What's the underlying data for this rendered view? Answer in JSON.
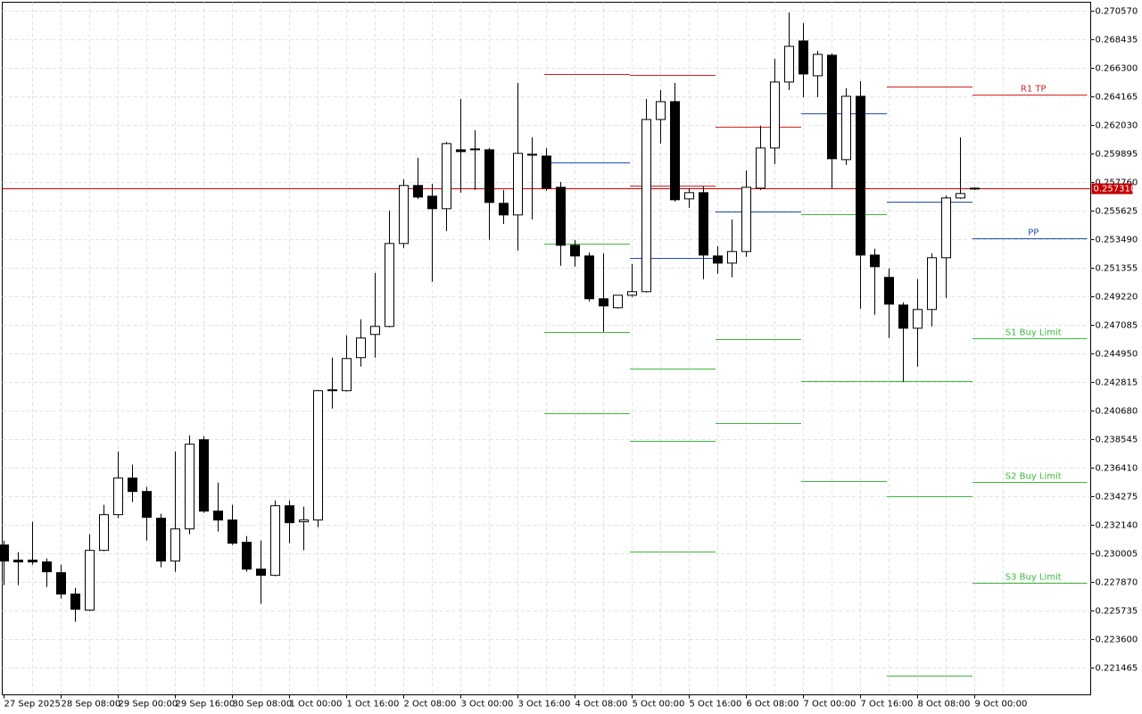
{
  "chart_data": {
    "type": "candlestick",
    "categories": [
      "27 Sep 2025",
      null,
      null,
      null,
      "28 Sep 08:00",
      null,
      null,
      null,
      "29 Sep 00:00",
      null,
      null,
      null,
      "29 Sep 16:00",
      null,
      null,
      null,
      "30 Sep 08:00",
      null,
      null,
      null,
      "1 Oct 00:00",
      null,
      null,
      null,
      "1 Oct 16:00",
      null,
      null,
      null,
      "2 Oct 08:00",
      null,
      null,
      null,
      "3 Oct 00:00",
      null,
      null,
      null,
      "3 Oct 16:00",
      null,
      null,
      null,
      "4 Oct 08:00",
      null,
      null,
      null,
      "5 Oct 00:00",
      null,
      null,
      null,
      "5 Oct 16:00",
      null,
      null,
      null,
      "6 Oct 08:00",
      null,
      null,
      null,
      "7 Oct 00:00",
      null,
      null,
      null,
      "7 Oct 16:00",
      null,
      null,
      null,
      "8 Oct 08:00",
      null,
      null,
      null,
      "9 Oct 00:00"
    ],
    "open": [
      0.230605,
      0.229471,
      0.229471,
      0.229337,
      0.228536,
      0.226935,
      0.225734,
      0.230204,
      0.232873,
      0.235609,
      0.234608,
      0.232606,
      0.229404,
      0.231806,
      0.238478,
      0.23314,
      0.232473,
      0.230805,
      0.228803,
      0.228336,
      0.23354,
      0.23234,
      0.232473,
      0.242147,
      0.242147,
      0.244616,
      0.246351,
      0.246951,
      0.253156,
      0.257493,
      0.256692,
      0.255758,
      0.260162,
      0.260228,
      0.260162,
      0.256159,
      0.255291,
      0.259828,
      0.259695,
      0.25736,
      0.253023,
      0.252222,
      0.24902,
      0.248352,
      0.249286,
      0.249553,
      0.26243,
      0.263765,
      0.256492,
      0.256959,
      0.252222,
      0.251688,
      0.252556,
      0.257293,
      0.260295,
      0.265232,
      0.268302,
      0.2657,
      0.267234,
      0.259428,
      0.264165,
      0.252289,
      0.250621,
      0.248552,
      0.246818,
      0.248219,
      0.252089,
      0.256559,
      0.257226
    ],
    "high": [
      0.230938,
      0.230071,
      0.23234,
      0.229604,
      0.229137,
      0.227402,
      0.231405,
      0.233607,
      0.23761,
      0.23661,
      0.234942,
      0.23294,
      0.23761,
      0.238811,
      0.238745,
      0.235275,
      0.233607,
      0.231272,
      0.230938,
      0.233941,
      0.233941,
      0.233474,
      0.242214,
      0.244616,
      0.246284,
      0.247485,
      0.250954,
      0.255625,
      0.25796,
      0.259561,
      0.257626,
      0.260762,
      0.263965,
      0.26163,
      0.260295,
      0.257159,
      0.265166,
      0.261096,
      0.260295,
      0.25776,
      0.253423,
      0.252489,
      0.252422,
      0.249286,
      0.251622,
      0.263965,
      0.264632,
      0.265166,
      0.257293,
      0.257426,
      0.252956,
      0.254958,
      0.258627,
      0.261963,
      0.266967,
      0.270437,
      0.269636,
      0.267568,
      0.267368,
      0.264765,
      0.265299,
      0.252756,
      0.251288,
      0.248753,
      0.250487,
      0.252422,
      0.256759,
      0.261096,
      0.25736
    ],
    "low": [
      0.227602,
      0.227602,
      0.229137,
      0.227469,
      0.226602,
      0.224867,
      0.225668,
      0.230138,
      0.232606,
      0.233807,
      0.230938,
      0.228937,
      0.228603,
      0.231405,
      0.233007,
      0.231606,
      0.230605,
      0.228603,
      0.226201,
      0.22827,
      0.230738,
      0.230204,
      0.231939,
      0.240813,
      0.242081,
      0.243949,
      0.244616,
      0.246884,
      0.252823,
      0.256492,
      0.250287,
      0.25409,
      0.256959,
      0.257159,
      0.253423,
      0.254624,
      0.252622,
      0.254958,
      0.257093,
      0.251488,
      0.251421,
      0.248819,
      0.246551,
      0.248286,
      0.249153,
      0.249487,
      0.260629,
      0.256292,
      0.255825,
      0.250487,
      0.250888,
      0.250621,
      0.252155,
      0.257159,
      0.259094,
      0.264632,
      0.264098,
      0.264098,
      0.257293,
      0.259028,
      0.248286,
      0.247819,
      0.246084,
      0.242815,
      0.243949,
      0.246951,
      0.249086,
      0.256492,
      0.257159
    ],
    "close": [
      0.229404,
      0.229337,
      0.229337,
      0.228603,
      0.226935,
      0.225801,
      0.230204,
      0.232873,
      0.235609,
      0.234608,
      0.232673,
      0.229404,
      0.231806,
      0.238144,
      0.23314,
      0.232473,
      0.230738,
      0.228803,
      0.228336,
      0.23354,
      0.232273,
      0.232473,
      0.242147,
      0.242214,
      0.244549,
      0.246084,
      0.246951,
      0.253156,
      0.257493,
      0.256626,
      0.255758,
      0.260629,
      0.260028,
      0.260162,
      0.256225,
      0.255291,
      0.259895,
      0.259761,
      0.257293,
      0.253023,
      0.252222,
      0.24902,
      0.248486,
      0.249286,
      0.249553,
      0.26243,
      0.263765,
      0.256425,
      0.256959,
      0.252289,
      0.251688,
      0.252556,
      0.25736,
      0.260295,
      0.265232,
      0.267901,
      0.265833,
      0.267301,
      0.259495,
      0.264165,
      0.252289,
      0.251421,
      0.248619,
      0.246818,
      0.248219,
      0.252089,
      0.256559,
      0.256892,
      0.257293
    ],
    "ylim": [
      0.2194,
      0.2712
    ],
    "yticks": [
      {
        "value": 0.27057,
        "label": "0.270570"
      },
      {
        "value": 0.268435,
        "label": "0.268435"
      },
      {
        "value": 0.2663,
        "label": "0.266300"
      },
      {
        "value": 0.264165,
        "label": "0.264165"
      },
      {
        "value": 0.26203,
        "label": "0.262030"
      },
      {
        "value": 0.259895,
        "label": "0.259895"
      },
      {
        "value": 0.25776,
        "label": "0.257760"
      },
      {
        "value": 0.255625,
        "label": "0.255625"
      },
      {
        "value": 0.25349,
        "label": "0.253490"
      },
      {
        "value": 0.251355,
        "label": "0.251355"
      },
      {
        "value": 0.24922,
        "label": "0.249220"
      },
      {
        "value": 0.247085,
        "label": "0.247085"
      },
      {
        "value": 0.24495,
        "label": "0.244950"
      },
      {
        "value": 0.242815,
        "label": "0.242815"
      },
      {
        "value": 0.24068,
        "label": "0.240680"
      },
      {
        "value": 0.238545,
        "label": "0.238545"
      },
      {
        "value": 0.23641,
        "label": "0.236410"
      },
      {
        "value": 0.234275,
        "label": "0.234275"
      },
      {
        "value": 0.23214,
        "label": "0.232140"
      },
      {
        "value": 0.230005,
        "label": "0.230005"
      },
      {
        "value": 0.22787,
        "label": "0.227870"
      },
      {
        "value": 0.225735,
        "label": "0.225735"
      },
      {
        "value": 0.2236,
        "label": "0.223600"
      },
      {
        "value": 0.221465,
        "label": "0.221465"
      }
    ],
    "grid": true,
    "current_price": {
      "value": 0.25731,
      "label": "0.257310",
      "color": "#c00000"
    },
    "pivot_segments": [
      [
        {
          "value": 0.265833,
          "color": "#d42020"
        },
        {
          "value": 0.259228,
          "color": "#1f4fa8"
        },
        {
          "value": 0.253156,
          "color": "#3cb83c"
        },
        {
          "value": 0.246551,
          "color": "#3cb83c"
        },
        {
          "value": 0.240479,
          "color": "#3cb83c"
        }
      ],
      [
        {
          "value": 0.265766,
          "color": "#d42020"
        },
        {
          "value": 0.257493,
          "color": "#d42020"
        },
        {
          "value": 0.252089,
          "color": "#1f4fa8"
        },
        {
          "value": 0.243815,
          "color": "#3cb83c"
        },
        {
          "value": 0.238412,
          "color": "#3cb83c"
        },
        {
          "value": 0.230138,
          "color": "#3cb83c"
        }
      ],
      [
        {
          "value": 0.261896,
          "color": "#d42020"
        },
        {
          "value": 0.255558,
          "color": "#1f4fa8"
        },
        {
          "value": 0.246017,
          "color": "#3cb83c"
        },
        {
          "value": 0.239745,
          "color": "#3cb83c"
        }
      ],
      [
        {
          "value": 0.262897,
          "color": "#1f4fa8"
        },
        {
          "value": 0.255358,
          "color": "#3cb83c"
        },
        {
          "value": 0.242881,
          "color": "#3cb83c"
        },
        {
          "value": 0.235409,
          "color": "#3cb83c"
        }
      ],
      [
        {
          "value": 0.264899,
          "color": "#d42020"
        },
        {
          "value": 0.256292,
          "color": "#1f4fa8"
        },
        {
          "value": 0.242881,
          "color": "#3cb83c"
        },
        {
          "value": 0.234274,
          "color": "#3cb83c"
        },
        {
          "value": 0.220864,
          "color": "#3cb83c"
        }
      ],
      [
        {
          "value": 0.264298,
          "color": "#d42020",
          "label": "R1 TP"
        },
        {
          "value": 0.253556,
          "color": "#1f4fa8",
          "label": "PP"
        },
        {
          "value": 0.246084,
          "color": "#3cb83c",
          "label": "S1 Buy Limit"
        },
        {
          "value": 0.235342,
          "color": "#3cb83c",
          "label": "S2 Buy Limit"
        },
        {
          "value": 0.227804,
          "color": "#3cb83c",
          "label": "S3 Buy Limit"
        }
      ]
    ]
  }
}
